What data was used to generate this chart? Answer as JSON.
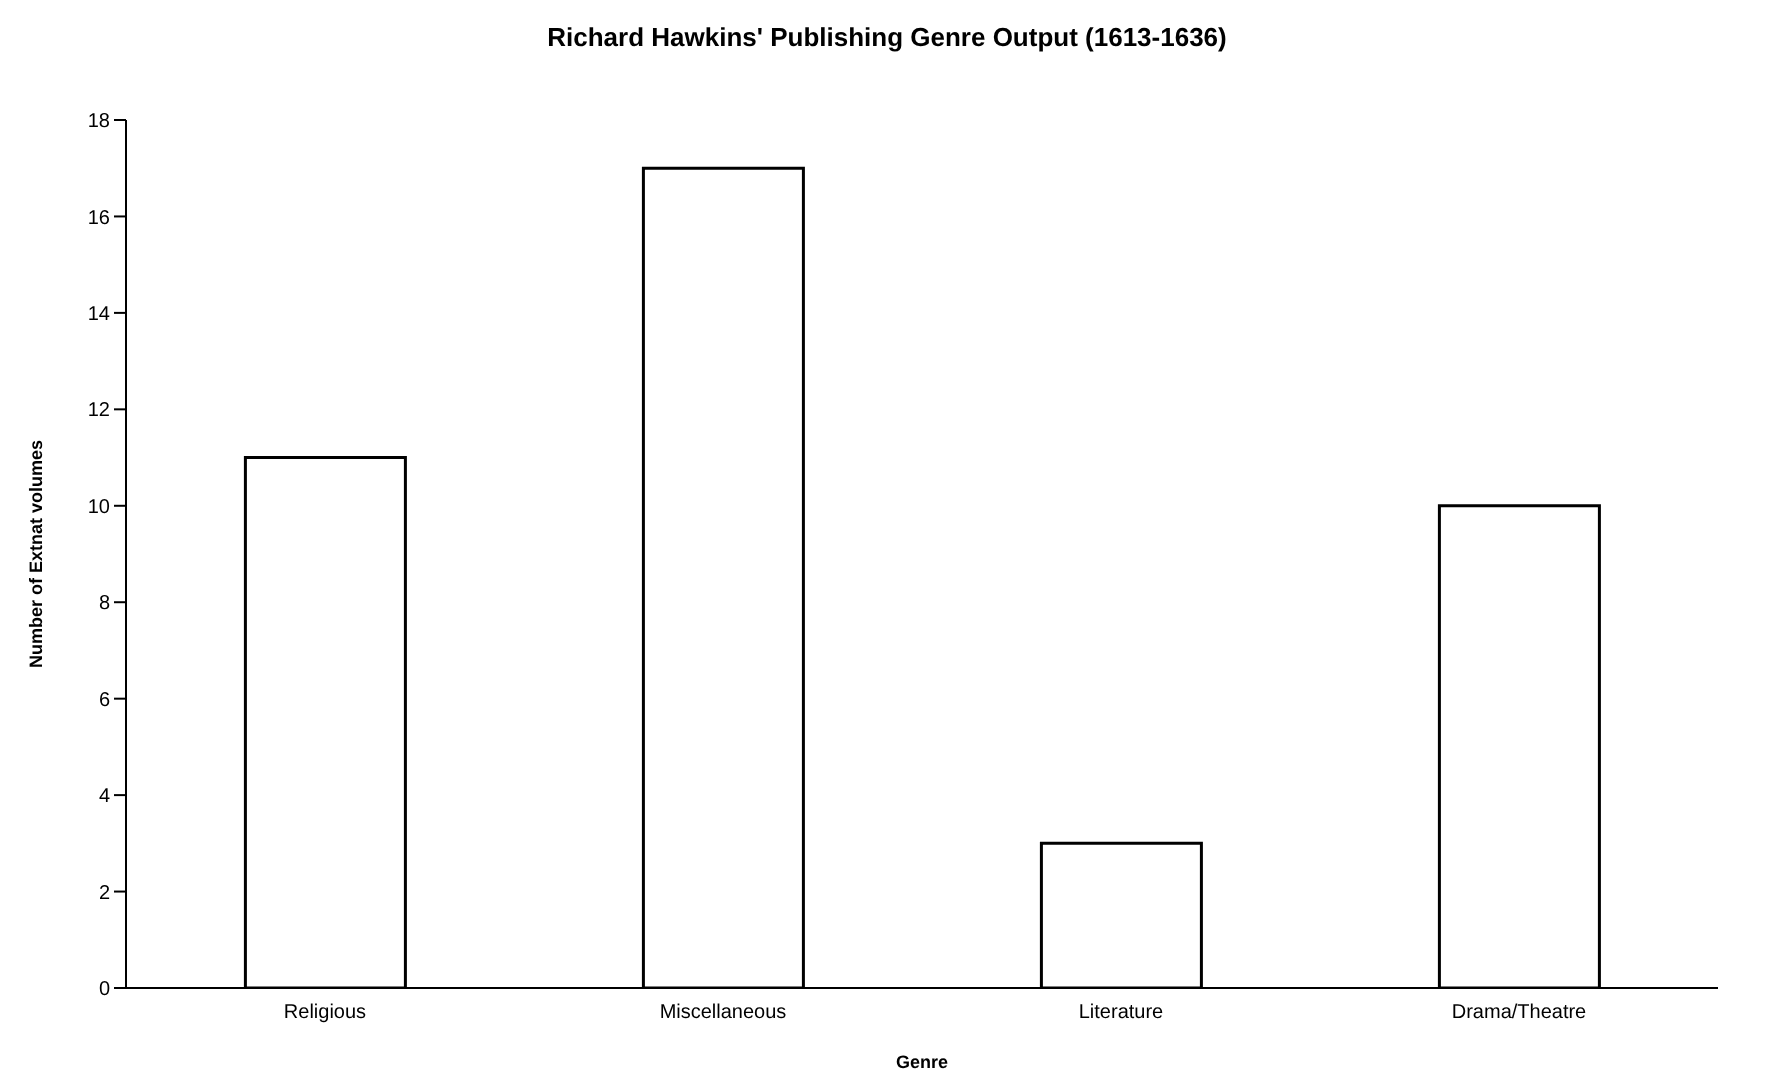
{
  "chart_data": {
    "type": "bar",
    "title": "Richard Hawkins' Publishing Genre Output (1613-1636)",
    "xlabel": "Genre",
    "ylabel": "Number of Extnat volumes",
    "categories": [
      "Religious",
      "Miscellaneous",
      "Literature",
      "Drama/Theatre"
    ],
    "values": [
      11,
      17,
      3,
      10
    ],
    "color": "#ffffff",
    "ylim": [
      0,
      18
    ],
    "yticks": [
      0,
      2,
      4,
      6,
      8,
      10,
      12,
      14,
      16,
      18
    ],
    "grid": false
  }
}
